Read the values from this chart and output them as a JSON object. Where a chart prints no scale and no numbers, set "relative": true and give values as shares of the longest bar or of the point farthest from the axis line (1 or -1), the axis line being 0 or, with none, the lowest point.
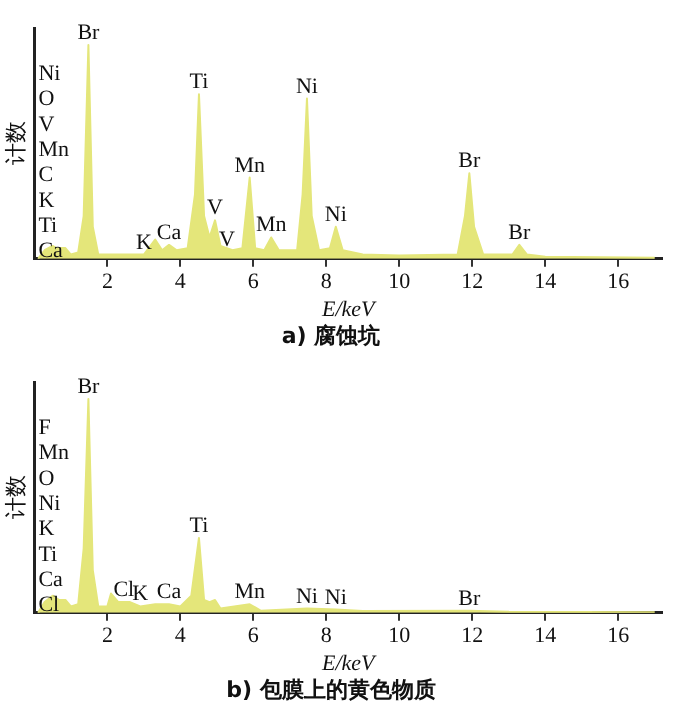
{
  "chart_data": [
    {
      "type": "area",
      "title": "a) 腐蚀坑",
      "xlabel": "E/keV",
      "ylabel": "计数",
      "relative": true,
      "grid": false,
      "legend": false,
      "tick_labels": "x",
      "marker": "none",
      "xlim": [
        0,
        17.2
      ],
      "xticks": [
        2,
        4,
        6,
        8,
        10,
        12,
        14,
        16
      ],
      "series": [
        {
          "color": "#e4e67a",
          "x": [
            0.1,
            0.28,
            0.5,
            0.6,
            0.85,
            1.0,
            1.2,
            1.35,
            1.48,
            1.6,
            1.75,
            2.2,
            3.0,
            3.31,
            3.5,
            3.69,
            3.9,
            4.2,
            4.4,
            4.51,
            4.65,
            4.8,
            4.95,
            5.1,
            5.43,
            5.7,
            5.9,
            6.05,
            6.3,
            6.49,
            6.7,
            7.2,
            7.35,
            7.47,
            7.6,
            7.8,
            8.1,
            8.26,
            8.45,
            9,
            10,
            11.6,
            11.8,
            11.92,
            12.05,
            12.3,
            13.1,
            13.29,
            13.5,
            14,
            17
          ],
          "values": [
            0,
            0.04,
            0.06,
            0.05,
            0.05,
            0.02,
            0.03,
            0.2,
            1,
            0.15,
            0.02,
            0.02,
            0.02,
            0.09,
            0.04,
            0.065,
            0.04,
            0.05,
            0.3,
            0.77,
            0.2,
            0.1,
            0.18,
            0.06,
            0.04,
            0.05,
            0.38,
            0.05,
            0.04,
            0.1,
            0.04,
            0.04,
            0.3,
            0.75,
            0.2,
            0.04,
            0.05,
            0.15,
            0.04,
            0.02,
            0.015,
            0.02,
            0.2,
            0.4,
            0.15,
            0.02,
            0.02,
            0.065,
            0.02,
            0.01,
            0.005
          ]
        }
      ],
      "annotations": [
        "Ni",
        "O",
        "V",
        "Mn",
        "C",
        "K",
        "Ti",
        "Ca",
        {
          "text": "Br",
          "x": 1.48,
          "y": 1
        },
        {
          "text": "K",
          "x": 3.0,
          "y": 0.02
        },
        {
          "text": "Ca",
          "x": 3.69,
          "y": 0.065
        },
        {
          "text": "Ti",
          "x": 4.51,
          "y": 0.77
        },
        {
          "text": "V",
          "x": 4.95,
          "y": 0.18
        },
        {
          "text": "V",
          "x": 5.28,
          "y": 0.03
        },
        {
          "text": "Mn",
          "x": 5.9,
          "y": 0.38
        },
        {
          "text": "Mn",
          "x": 6.49,
          "y": 0.1
        },
        {
          "text": "Ni",
          "x": 7.47,
          "y": 0.75
        },
        {
          "text": "Ni",
          "x": 8.26,
          "y": 0.15
        },
        {
          "text": "Br",
          "x": 11.92,
          "y": 0.4
        },
        {
          "text": "Br",
          "x": 13.29,
          "y": 0.065
        }
      ]
    },
    {
      "type": "area",
      "title": "b) 包膜上的黄色物质",
      "xlabel": "E/keV",
      "ylabel": "计数",
      "relative": true,
      "grid": false,
      "legend": false,
      "tick_labels": "x",
      "marker": "none",
      "xlim": [
        0,
        17.2
      ],
      "xticks": [
        2,
        4,
        6,
        8,
        10,
        12,
        14,
        16
      ],
      "series": [
        {
          "color": "#e4e67a",
          "x": [
            0.1,
            0.28,
            0.5,
            0.68,
            0.85,
            1.0,
            1.2,
            1.35,
            1.48,
            1.6,
            1.75,
            2.0,
            2.1,
            2.3,
            2.62,
            2.9,
            3.31,
            3.69,
            4.0,
            4.3,
            4.51,
            4.65,
            4.8,
            4.95,
            5.1,
            5.9,
            6.2,
            7.47,
            8.26,
            9,
            11.92,
            13,
            17
          ],
          "values": [
            0,
            0.05,
            0.08,
            0.06,
            0.06,
            0.03,
            0.04,
            0.3,
            1,
            0.2,
            0.03,
            0.03,
            0.09,
            0.05,
            0.05,
            0.03,
            0.04,
            0.04,
            0.03,
            0.08,
            0.35,
            0.06,
            0.05,
            0.06,
            0.02,
            0.04,
            0.01,
            0.02,
            0.015,
            0.008,
            0.01,
            0.005,
            0.003
          ]
        }
      ],
      "annotations": [
        "F",
        "Mn",
        "O",
        "Ni",
        "K",
        "Ti",
        "Ca",
        "Cl",
        {
          "text": "Br",
          "x": 1.48,
          "y": 1
        },
        {
          "text": "Cl",
          "x": 2.45,
          "y": 0.05
        },
        {
          "text": "K",
          "x": 2.9,
          "y": 0.03
        },
        {
          "text": "Ca",
          "x": 3.69,
          "y": 0.04
        },
        {
          "text": "Ti",
          "x": 4.51,
          "y": 0.35
        },
        {
          "text": "Mn",
          "x": 5.9,
          "y": 0.04
        },
        {
          "text": "Ni",
          "x": 7.47,
          "y": 0.02
        },
        {
          "text": "Ni",
          "x": 8.26,
          "y": 0.015
        },
        {
          "text": "Br",
          "x": 11.92,
          "y": 0.01
        }
      ]
    }
  ]
}
